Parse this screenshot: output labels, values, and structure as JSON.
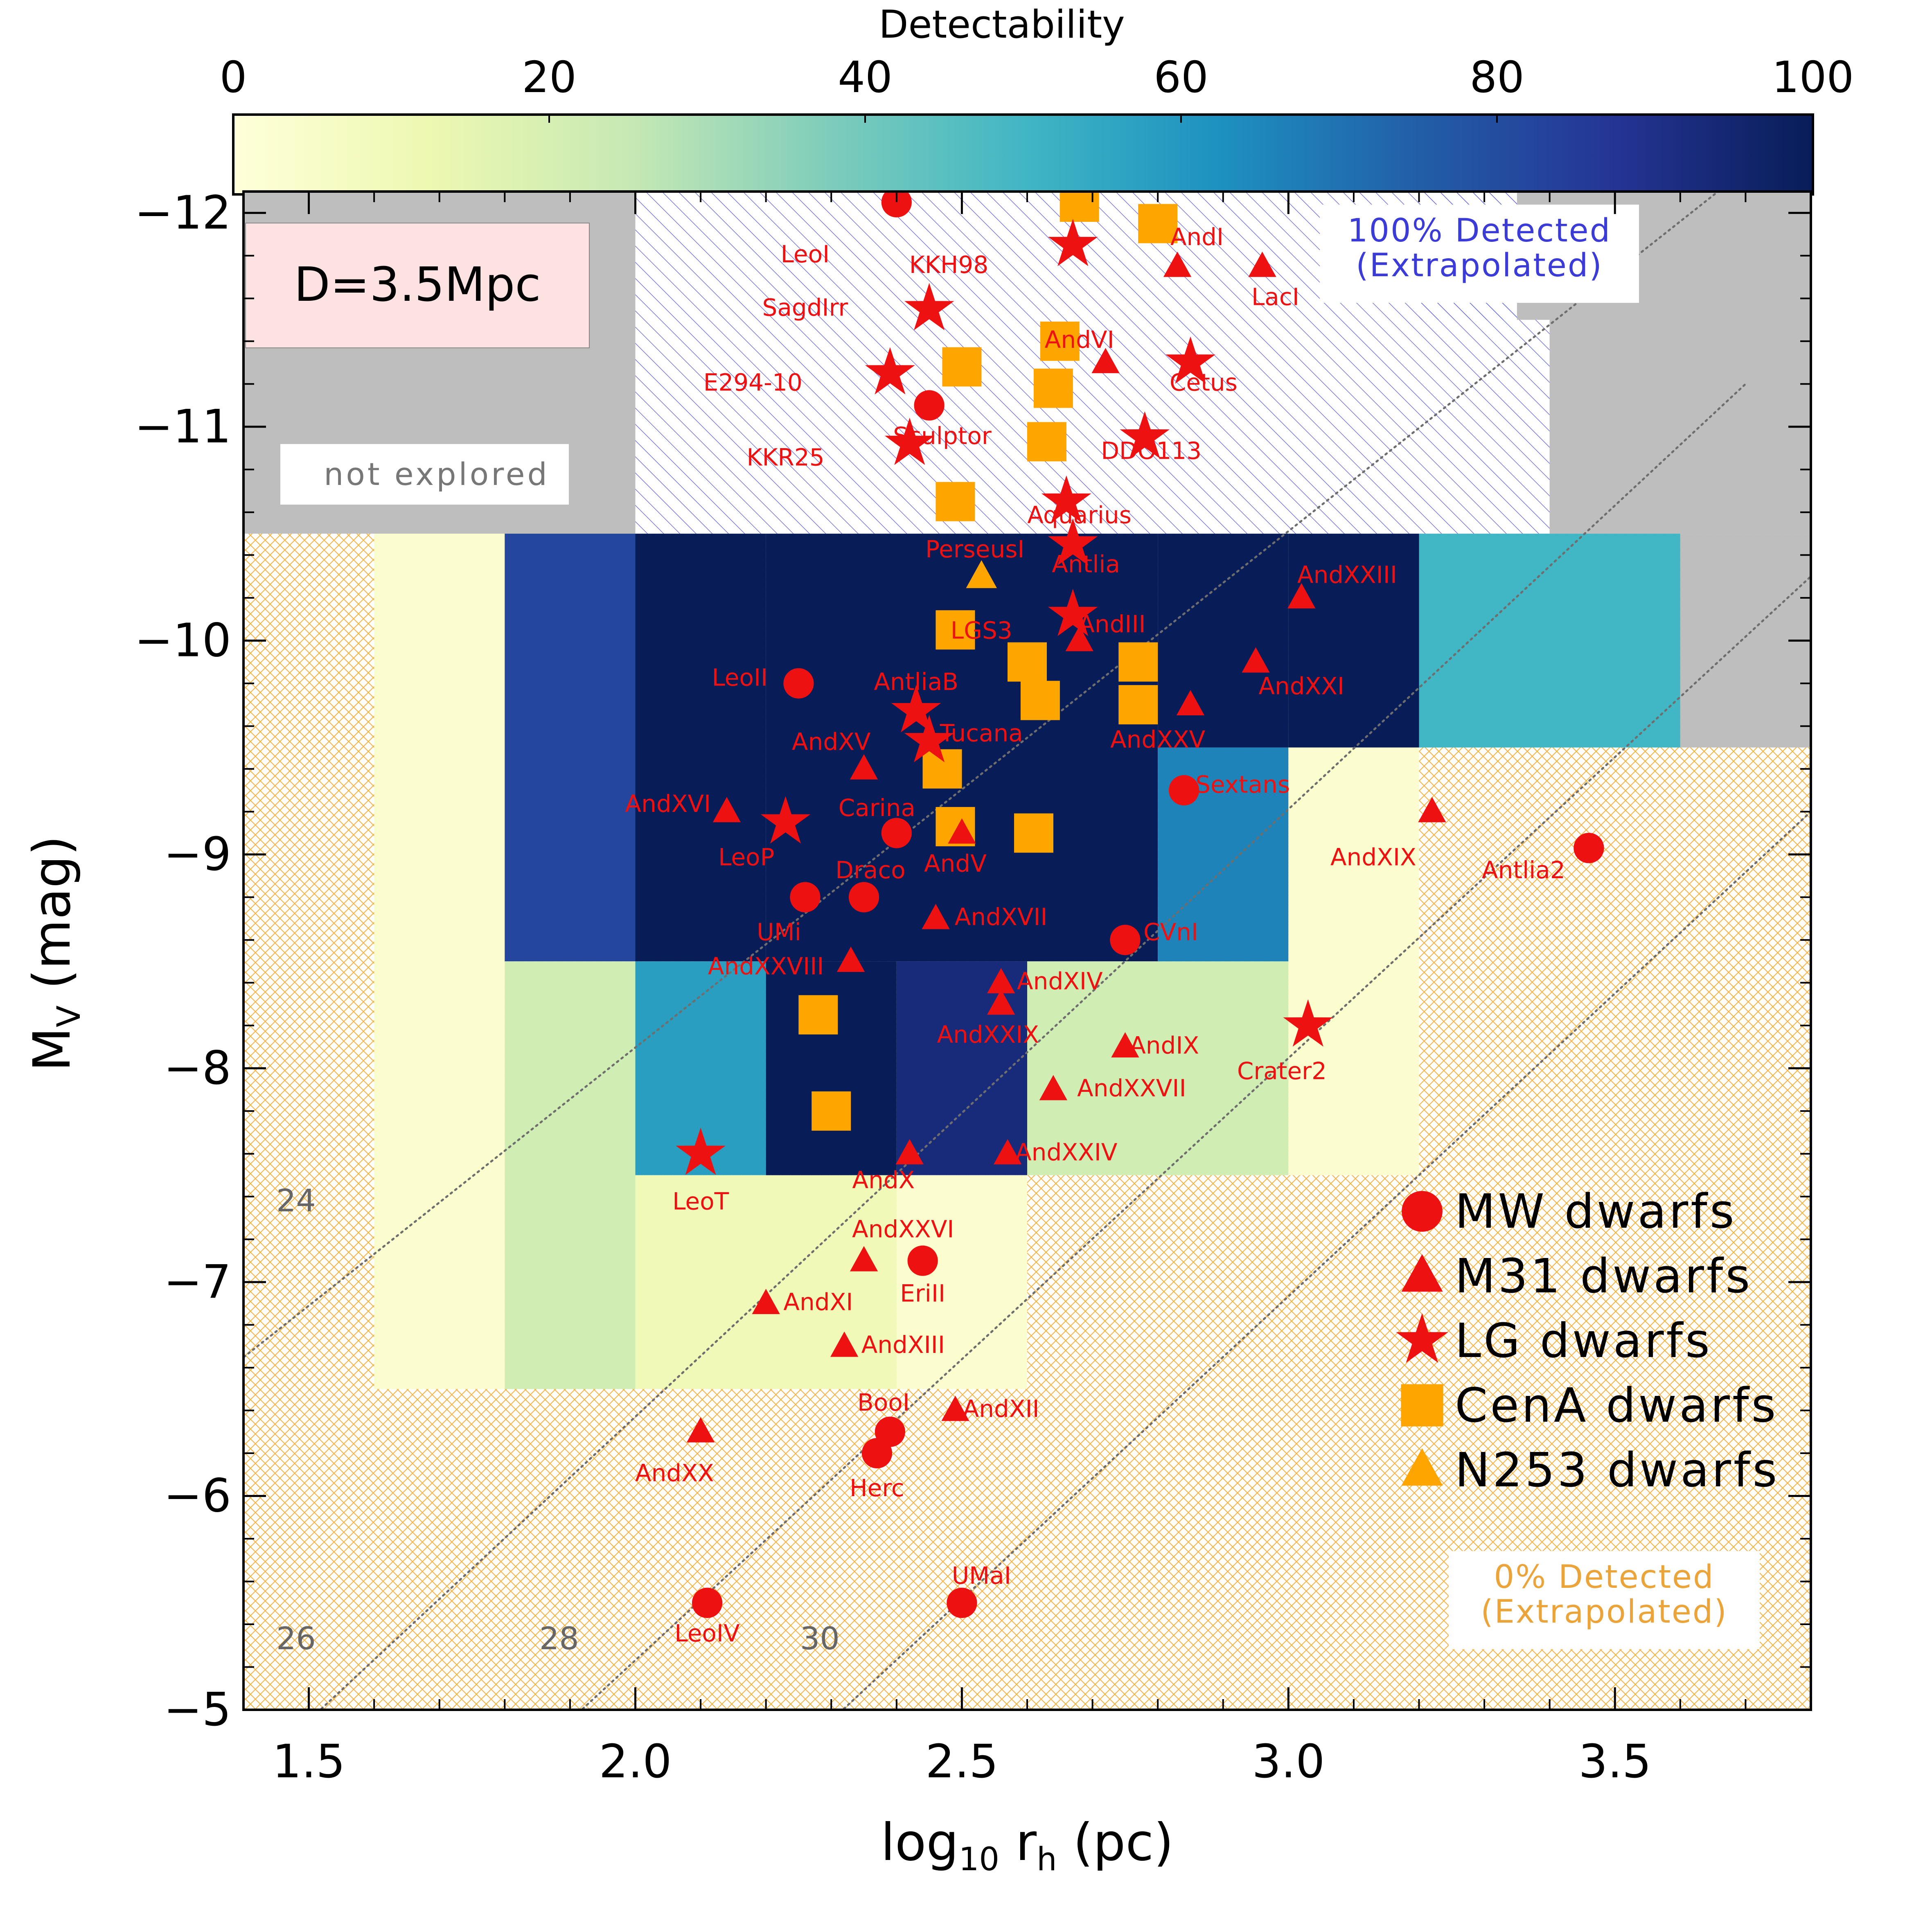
{
  "colors": {
    "marker_red": "#ee1111",
    "marker_orange": "#ffa500",
    "outer_gray": "#bebebe",
    "hatch_blue": "#5c5cdc",
    "hatch_orange": "#f5b54a",
    "label_blue": "#3b3bd8",
    "label_orange": "#eaa43a",
    "density_line": "#6e6e6e"
  },
  "colorbar": {
    "label": "Detectability",
    "ticks": [
      "0",
      "20",
      "40",
      "60",
      "80",
      "100"
    ],
    "range": [
      0,
      100
    ]
  },
  "distance_label": "D=3.5Mpc",
  "not_explored_label": "not explored",
  "hatch_labels": {
    "detected_100": [
      "100% Detected",
      "(Extrapolated)"
    ],
    "detected_0": [
      "0% Detected",
      "(Extrapolated)"
    ]
  },
  "surface_brightness_labels": [
    "24",
    "26",
    "28",
    "30"
  ],
  "legend": [
    {
      "symbol": "circle",
      "label": "MW dwarfs",
      "color": "#ee1111"
    },
    {
      "symbol": "triangle",
      "label": "M31 dwarfs",
      "color": "#ee1111"
    },
    {
      "symbol": "star",
      "label": "LG dwarfs",
      "color": "#ee1111"
    },
    {
      "symbol": "square",
      "label": "CenA dwarfs",
      "color": "#ffa500"
    },
    {
      "symbol": "triangle",
      "label": "N253 dwarfs",
      "color": "#ffa500"
    }
  ],
  "chart_data": {
    "type": "scatter",
    "title": "",
    "xlabel": "log10 rh (pc)",
    "ylabel": "MV (mag)",
    "xlim": [
      1.4,
      3.8
    ],
    "ylim": [
      -5,
      -12.1
    ],
    "x_ticks": [
      "1.5",
      "2.0",
      "2.5",
      "3.0",
      "3.5"
    ],
    "x_tick_values": [
      1.5,
      2.0,
      2.5,
      3.0,
      3.5
    ],
    "y_ticks": [
      "−12",
      "−11",
      "−10",
      "−9",
      "−8",
      "−7",
      "−6",
      "−5"
    ],
    "y_tick_values": [
      -12,
      -11,
      -10,
      -9,
      -8,
      -7,
      -6,
      -5
    ],
    "detectability_grid": [
      {
        "x0": 1.6,
        "x1": 1.8,
        "y0": -10.5,
        "y1": -6.5,
        "value": 3
      },
      {
        "x0": 1.8,
        "x1": 2.0,
        "y0": -10.5,
        "y1": -8.5,
        "value": 82
      },
      {
        "x0": 1.8,
        "x1": 2.0,
        "y0": -8.5,
        "y1": -6.5,
        "value": 22
      },
      {
        "x0": 2.0,
        "x1": 2.2,
        "y0": -10.5,
        "y1": -8.5,
        "value": 100
      },
      {
        "x0": 2.0,
        "x1": 2.2,
        "y0": -8.5,
        "y1": -7.5,
        "value": 58
      },
      {
        "x0": 2.0,
        "x1": 2.4,
        "y0": -7.5,
        "y1": -6.5,
        "value": 10
      },
      {
        "x0": 2.2,
        "x1": 2.6,
        "y0": -10.5,
        "y1": -8.5,
        "value": 100
      },
      {
        "x0": 2.2,
        "x1": 2.4,
        "y0": -8.5,
        "y1": -7.5,
        "value": 100
      },
      {
        "x0": 2.4,
        "x1": 2.6,
        "y0": -8.5,
        "y1": -7.5,
        "value": 93
      },
      {
        "x0": 2.4,
        "x1": 2.6,
        "y0": -7.5,
        "y1": -6.5,
        "value": 3
      },
      {
        "x0": 2.6,
        "x1": 2.8,
        "y0": -10.5,
        "y1": -8.5,
        "value": 100
      },
      {
        "x0": 2.6,
        "x1": 3.0,
        "y0": -8.5,
        "y1": -7.5,
        "value": 22
      },
      {
        "x0": 2.8,
        "x1": 3.0,
        "y0": -10.5,
        "y1": -9.5,
        "value": 100
      },
      {
        "x0": 2.8,
        "x1": 3.0,
        "y0": -9.5,
        "y1": -8.5,
        "value": 66
      },
      {
        "x0": 3.0,
        "x1": 3.2,
        "y0": -10.5,
        "y1": -9.5,
        "value": 100
      },
      {
        "x0": 3.0,
        "x1": 3.2,
        "y0": -9.5,
        "y1": -7.5,
        "value": 3
      },
      {
        "x0": 3.2,
        "x1": 3.6,
        "y0": -10.5,
        "y1": -9.5,
        "value": 50
      }
    ],
    "galaxies": [
      {
        "name": "LeoI",
        "group": "MW",
        "x": 2.4,
        "y": -12.05,
        "lx": 2.26,
        "ly": -11.8
      },
      {
        "name": "KKH98",
        "group": "LG",
        "x": 2.67,
        "y": -11.85,
        "lx": 2.48,
        "ly": -11.75
      },
      {
        "name": "AndI",
        "group": "M31",
        "x": 2.83,
        "y": -11.75,
        "lx": 2.86,
        "ly": -11.88
      },
      {
        "name": "LacI",
        "group": "M31",
        "x": 2.96,
        "y": -11.75,
        "lx": 2.98,
        "ly": -11.6
      },
      {
        "name": "SagdIrr",
        "group": "LG",
        "x": 2.45,
        "y": -11.55,
        "lx": 2.26,
        "ly": -11.55
      },
      {
        "name": "AndVI",
        "group": "M31",
        "x": 2.72,
        "y": -11.3,
        "lx": 2.68,
        "ly": -11.4
      },
      {
        "name": "E294-10",
        "group": "LG",
        "x": 2.39,
        "y": -11.25,
        "lx": 2.18,
        "ly": -11.2
      },
      {
        "name": "Cetus",
        "group": "LG",
        "x": 2.85,
        "y": -11.3,
        "lx": 2.87,
        "ly": -11.2
      },
      {
        "name": "Sculptor",
        "group": "MW",
        "x": 2.45,
        "y": -11.1,
        "lx": 2.47,
        "ly": -10.95
      },
      {
        "name": "KKR25",
        "group": "LG",
        "x": 2.42,
        "y": -10.92,
        "lx": 2.23,
        "ly": -10.85
      },
      {
        "name": "DDO113",
        "group": "LG",
        "x": 2.78,
        "y": -10.95,
        "lx": 2.79,
        "ly": -10.88
      },
      {
        "name": "Aquarius",
        "group": "LG",
        "x": 2.66,
        "y": -10.65,
        "lx": 2.68,
        "ly": -10.58
      },
      {
        "name": "PerseusI",
        "group": "N253",
        "x": 2.53,
        "y": -10.3,
        "lx": 2.52,
        "ly": -10.42
      },
      {
        "name": "Antlia",
        "group": "LG",
        "x": 2.67,
        "y": -10.45,
        "lx": 2.69,
        "ly": -10.35
      },
      {
        "name": "AndXXIII",
        "group": "M31",
        "x": 3.02,
        "y": -10.2,
        "lx": 3.09,
        "ly": -10.3
      },
      {
        "name": "AndIII",
        "group": "LG",
        "x": 2.67,
        "y": -10.12,
        "lx": 2.73,
        "ly": -10.07
      },
      {
        "name": "LGS3",
        "group": "M31",
        "x": 2.68,
        "y": -10.0,
        "lx": 2.53,
        "ly": -10.04
      },
      {
        "name": "LeoII",
        "group": "MW",
        "x": 2.25,
        "y": -9.8,
        "lx": 2.16,
        "ly": -9.82
      },
      {
        "name": "AndXXI",
        "group": "M31",
        "x": 2.95,
        "y": -9.9,
        "lx": 3.02,
        "ly": -9.78
      },
      {
        "name": "AntliaB",
        "group": "LG",
        "x": 2.43,
        "y": -9.67,
        "lx": 2.43,
        "ly": -9.8
      },
      {
        "name": "AndXXV",
        "group": "M31",
        "x": 2.85,
        "y": -9.7,
        "lx": 2.8,
        "ly": -9.53
      },
      {
        "name": "Tucana",
        "group": "LG",
        "x": 2.45,
        "y": -9.53,
        "lx": 2.53,
        "ly": -9.56
      },
      {
        "name": "AndXV",
        "group": "M31",
        "x": 2.35,
        "y": -9.4,
        "lx": 2.3,
        "ly": -9.52
      },
      {
        "name": "Sextans",
        "group": "MW",
        "x": 2.84,
        "y": -9.3,
        "lx": 2.93,
        "ly": -9.32
      },
      {
        "name": "AndXVI",
        "group": "M31",
        "x": 2.14,
        "y": -9.2,
        "lx": 2.05,
        "ly": -9.23
      },
      {
        "name": "Carina",
        "group": "MW",
        "x": 2.4,
        "y": -9.1,
        "lx": 2.37,
        "ly": -9.21
      },
      {
        "name": "AndXIX",
        "group": "M31",
        "x": 3.22,
        "y": -9.2,
        "lx": 3.13,
        "ly": -8.98
      },
      {
        "name": "LeoP",
        "group": "LG",
        "x": 2.23,
        "y": -9.15,
        "lx": 2.17,
        "ly": -8.98
      },
      {
        "name": "AndV",
        "group": "M31",
        "x": 2.5,
        "y": -9.1,
        "lx": 2.49,
        "ly": -8.95
      },
      {
        "name": "Antlia2",
        "group": "MW",
        "x": 3.46,
        "y": -9.03,
        "lx": 3.36,
        "ly": -8.92
      },
      {
        "name": "Draco",
        "group": "MW",
        "x": 2.35,
        "y": -8.8,
        "lx": 2.36,
        "ly": -8.92
      },
      {
        "name": "UMi",
        "group": "MW",
        "x": 2.26,
        "y": -8.8,
        "lx": 2.22,
        "ly": -8.63
      },
      {
        "name": "AndXVII",
        "group": "M31",
        "x": 2.46,
        "y": -8.7,
        "lx": 2.56,
        "ly": -8.7
      },
      {
        "name": "CVnI",
        "group": "MW",
        "x": 2.75,
        "y": -8.6,
        "lx": 2.82,
        "ly": -8.63
      },
      {
        "name": "AndXXVIII",
        "group": "M31",
        "x": 2.33,
        "y": -8.5,
        "lx": 2.2,
        "ly": -8.47
      },
      {
        "name": "AndXIV",
        "group": "M31",
        "x": 2.56,
        "y": -8.4,
        "lx": 2.65,
        "ly": -8.4
      },
      {
        "name": "AndXXIX",
        "group": "M31",
        "x": 2.56,
        "y": -8.3,
        "lx": 2.54,
        "ly": -8.15
      },
      {
        "name": "AndIX",
        "group": "M31",
        "x": 2.75,
        "y": -8.1,
        "lx": 2.81,
        "ly": -8.1
      },
      {
        "name": "Crater2",
        "group": "LG",
        "x": 3.03,
        "y": -8.2,
        "lx": 2.99,
        "ly": -7.98
      },
      {
        "name": "AndXXVII",
        "group": "M31",
        "x": 2.64,
        "y": -7.9,
        "lx": 2.76,
        "ly": -7.9
      },
      {
        "name": "AndXXIV",
        "group": "M31",
        "x": 2.57,
        "y": -7.6,
        "lx": 2.66,
        "ly": -7.6
      },
      {
        "name": "LeoT",
        "group": "LG",
        "x": 2.1,
        "y": -7.6,
        "lx": 2.1,
        "ly": -7.37
      },
      {
        "name": "AndX",
        "group": "M31",
        "x": 2.42,
        "y": -7.6,
        "lx": 2.38,
        "ly": -7.47
      },
      {
        "name": "AndXXVI",
        "group": "M31",
        "x": 2.35,
        "y": -7.1,
        "lx": 2.41,
        "ly": -7.24
      },
      {
        "name": "EriII",
        "group": "MW",
        "x": 2.44,
        "y": -7.1,
        "lx": 2.44,
        "ly": -6.94
      },
      {
        "name": "AndXI",
        "group": "M31",
        "x": 2.2,
        "y": -6.9,
        "lx": 2.28,
        "ly": -6.9
      },
      {
        "name": "AndXIII",
        "group": "M31",
        "x": 2.32,
        "y": -6.7,
        "lx": 2.41,
        "ly": -6.7
      },
      {
        "name": "BooI",
        "group": "MW",
        "x": 2.39,
        "y": -6.3,
        "lx": 2.38,
        "ly": -6.43
      },
      {
        "name": "AndXII",
        "group": "M31",
        "x": 2.49,
        "y": -6.4,
        "lx": 2.56,
        "ly": -6.4
      },
      {
        "name": "AndXX",
        "group": "M31",
        "x": 2.1,
        "y": -6.3,
        "lx": 2.06,
        "ly": -6.1
      },
      {
        "name": "Herc",
        "group": "MW",
        "x": 2.37,
        "y": -6.2,
        "lx": 2.37,
        "ly": -6.03
      },
      {
        "name": "UMaI",
        "group": "MW",
        "x": 2.5,
        "y": -5.5,
        "lx": 2.53,
        "ly": -5.62
      },
      {
        "name": "LeoIV",
        "group": "MW",
        "x": 2.11,
        "y": -5.5,
        "lx": 2.11,
        "ly": -5.35
      }
    ],
    "cena_dwarfs": [
      {
        "x": 2.68,
        "y": -12.05
      },
      {
        "x": 2.8,
        "y": -11.95
      },
      {
        "x": 2.5,
        "y": -11.28
      },
      {
        "x": 2.65,
        "y": -11.4
      },
      {
        "x": 2.64,
        "y": -11.18
      },
      {
        "x": 2.63,
        "y": -10.93
      },
      {
        "x": 2.49,
        "y": -10.65
      },
      {
        "x": 2.49,
        "y": -10.05
      },
      {
        "x": 2.6,
        "y": -9.9
      },
      {
        "x": 2.77,
        "y": -9.9
      },
      {
        "x": 2.62,
        "y": -9.72
      },
      {
        "x": 2.77,
        "y": -9.7
      },
      {
        "x": 2.47,
        "y": -9.4
      },
      {
        "x": 2.49,
        "y": -9.13
      },
      {
        "x": 2.61,
        "y": -9.1
      },
      {
        "x": 2.28,
        "y": -8.25
      },
      {
        "x": 2.3,
        "y": -7.8
      }
    ]
  }
}
